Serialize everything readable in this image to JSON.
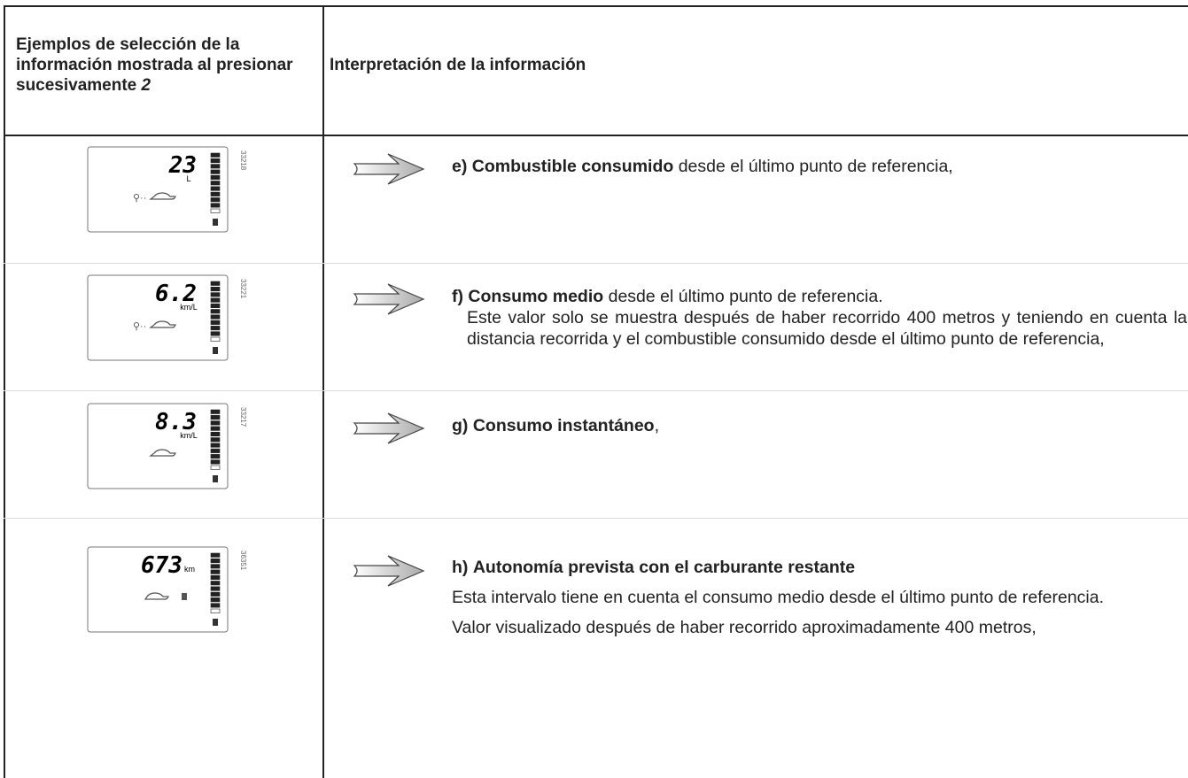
{
  "header": {
    "col1": "Ejemplos de selección de la información mostrada al presionar sucesivamente",
    "col1_ref": "2",
    "col2": "Interpretación de la información"
  },
  "rows": [
    {
      "display": {
        "reading": "23",
        "unit": "L",
        "code": "33218"
      },
      "label": "e)",
      "bold": "Combustible consumido",
      "rest": " desde el último punto de referencia,",
      "paragraphs": []
    },
    {
      "display": {
        "reading": "6.2",
        "unit": "km/L",
        "code": "33221"
      },
      "label": "f)",
      "bold": "Consumo medio",
      "rest": " desde el último punto de referencia.",
      "paragraphs": [
        "Este valor solo se muestra después de haber recorrido 400 metros y teniendo en cuenta la distancia recorrida y el combustible consumido desde el último punto de referencia,"
      ]
    },
    {
      "display": {
        "reading": "8.3",
        "unit": "km/L",
        "code": "33217"
      },
      "label": "g)",
      "bold": "Consumo instantáneo",
      "rest": ",",
      "paragraphs": []
    },
    {
      "display": {
        "reading": "673",
        "unit": "km",
        "code": "36351"
      },
      "label": "h)",
      "bold": "Autonomía prevista con el carburante restante",
      "rest": "",
      "paragraphs": [
        "Esta intervalo tiene en cuenta el consumo medio desde el último punto de referencia.",
        "Valor visualizado después de haber recorrido aproximadamente 400 metros,"
      ]
    }
  ]
}
